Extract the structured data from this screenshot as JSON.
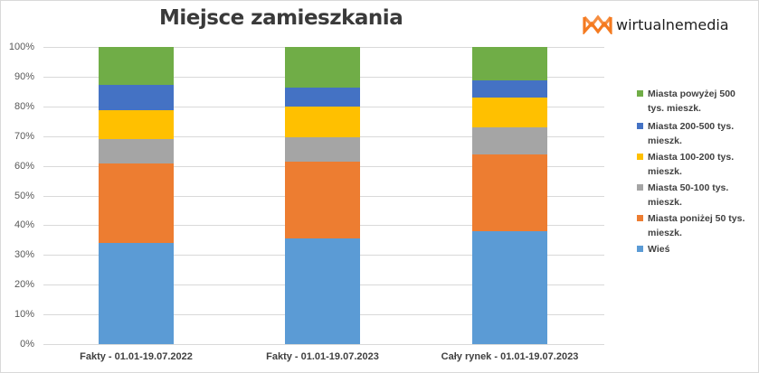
{
  "title": "Miejsce zamieszkania",
  "logo": {
    "text": "wirtualnemedia",
    "icon": "wm-logo-icon",
    "color": "#f47a20"
  },
  "colors": {
    "wies": "#5b9bd5",
    "ponizej50": "#ed7d31",
    "50_100": "#a5a5a5",
    "100_200": "#ffc000",
    "200_500": "#4472c4",
    "powyzej500": "#70ad47",
    "grid": "#d9d9d9"
  },
  "axis": {
    "yticks": [
      "0%",
      "10%",
      "20%",
      "30%",
      "40%",
      "50%",
      "60%",
      "70%",
      "80%",
      "90%",
      "100%"
    ]
  },
  "legend": {
    "items": [
      {
        "label": "Miasta powyżej 500 tys. mieszk.",
        "color": "#70ad47"
      },
      {
        "label": "Miasta 200-500 tys. mieszk.",
        "color": "#4472c4"
      },
      {
        "label": "Miasta 100-200 tys. mieszk.",
        "color": "#ffc000"
      },
      {
        "label": "Miasta 50-100 tys. mieszk.",
        "color": "#a5a5a5"
      },
      {
        "label": "Miasta poniżej 50 tys. mieszk.",
        "color": "#ed7d31"
      },
      {
        "label": "Wieś",
        "color": "#5b9bd5"
      }
    ]
  },
  "chart_data": {
    "type": "bar",
    "stacked": true,
    "normalized": true,
    "title": "Miejsce zamieszkania",
    "xlabel": "",
    "ylabel": "",
    "ylim": [
      0,
      100
    ],
    "y_format": "percent",
    "grid": true,
    "legend_position": "right",
    "categories": [
      "Fakty - 01.01-19.07.2022",
      "Fakty - 01.01-19.07.2023",
      "Cały rynek - 01.01-19.07.2023"
    ],
    "series": [
      {
        "name": "Wieś",
        "color": "#5b9bd5",
        "values": [
          34.1,
          35.7,
          38.1
        ]
      },
      {
        "name": "Miasta poniżej 50 tys. mieszk.",
        "color": "#ed7d31",
        "values": [
          26.8,
          25.6,
          25.6
        ]
      },
      {
        "name": "Miasta 50-100 tys. mieszk.",
        "color": "#a5a5a5",
        "values": [
          8.1,
          8.3,
          9.2
        ]
      },
      {
        "name": "Miasta 100-200 tys. mieszk.",
        "color": "#ffc000",
        "values": [
          9.8,
          10.4,
          10.0
        ]
      },
      {
        "name": "Miasta 200-500 tys. mieszk.",
        "color": "#4472c4",
        "values": [
          8.5,
          6.4,
          5.9
        ]
      },
      {
        "name": "Miasta powyżej 500 tys. mieszk.",
        "color": "#70ad47",
        "values": [
          12.7,
          13.6,
          11.2
        ]
      }
    ]
  }
}
